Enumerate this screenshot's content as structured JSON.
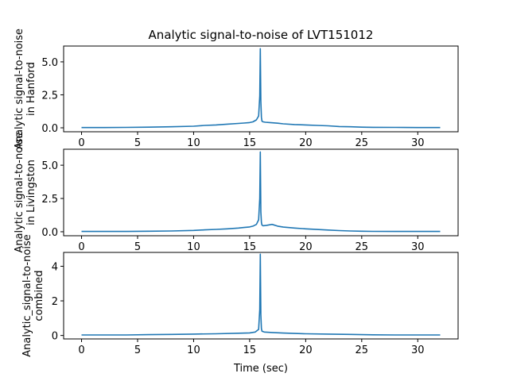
{
  "chart_data": {
    "type": "line",
    "title": "Analytic signal-to-noise of LVT151012",
    "xlabel": "Time (sec)",
    "color": "#1f77b4",
    "panels": [
      {
        "ylabel_lines": [
          "Analytic signal-to-noise",
          "in Hanford"
        ],
        "xlim": [
          -1.6,
          33.6
        ],
        "ylim": [
          -0.3,
          6.2
        ],
        "xticks": [
          0,
          5,
          10,
          15,
          20,
          25,
          30
        ],
        "yticks": [
          0.0,
          2.5,
          5.0
        ],
        "ytick_labels": [
          "0.0",
          "2.5",
          "5.0"
        ],
        "series": {
          "name": "Hanford",
          "x": [
            0,
            2,
            4,
            6,
            8,
            10,
            11,
            12,
            13,
            14,
            14.5,
            15,
            15.3,
            15.6,
            15.8,
            15.9,
            15.95,
            16.0,
            16.05,
            16.1,
            16.2,
            16.4,
            16.8,
            17.5,
            18,
            19,
            20,
            21,
            22,
            23,
            24,
            25,
            26,
            28,
            30,
            32
          ],
          "y": [
            0.02,
            0.02,
            0.03,
            0.05,
            0.08,
            0.12,
            0.18,
            0.22,
            0.28,
            0.33,
            0.36,
            0.4,
            0.45,
            0.6,
            0.9,
            2.4,
            6.0,
            2.0,
            0.8,
            0.5,
            0.45,
            0.42,
            0.4,
            0.35,
            0.3,
            0.25,
            0.22,
            0.18,
            0.15,
            0.1,
            0.08,
            0.05,
            0.04,
            0.03,
            0.02,
            0.02
          ]
        }
      },
      {
        "ylabel_lines": [
          "Analytic signal-to-noise",
          "in Livingston"
        ],
        "xlim": [
          -1.6,
          33.6
        ],
        "ylim": [
          -0.3,
          6.2
        ],
        "xticks": [
          0,
          5,
          10,
          15,
          20,
          25,
          30
        ],
        "yticks": [
          0.0,
          2.5,
          5.0
        ],
        "ytick_labels": [
          "0.0",
          "2.5",
          "5.0"
        ],
        "series": {
          "name": "Livingston",
          "x": [
            0,
            2,
            4,
            6,
            8,
            10,
            11,
            12,
            13,
            14,
            14.5,
            15,
            15.3,
            15.6,
            15.8,
            15.9,
            15.95,
            16.0,
            16.05,
            16.1,
            16.2,
            16.5,
            17,
            17.5,
            18,
            19,
            20,
            21,
            22,
            23,
            24,
            25,
            26,
            28,
            30,
            32
          ],
          "y": [
            0.02,
            0.02,
            0.02,
            0.04,
            0.06,
            0.1,
            0.14,
            0.18,
            0.22,
            0.28,
            0.32,
            0.36,
            0.42,
            0.55,
            0.9,
            2.5,
            6.0,
            1.5,
            0.7,
            0.5,
            0.45,
            0.48,
            0.55,
            0.42,
            0.35,
            0.28,
            0.22,
            0.17,
            0.13,
            0.09,
            0.06,
            0.04,
            0.03,
            0.02,
            0.02,
            0.02
          ]
        }
      },
      {
        "ylabel_lines": [
          "Analytic_signal-to-noise",
          "combined"
        ],
        "xlim": [
          -1.6,
          33.6
        ],
        "ylim": [
          -0.2,
          4.8
        ],
        "xticks": [
          0,
          5,
          10,
          15,
          20,
          25,
          30
        ],
        "yticks": [
          0,
          2,
          4
        ],
        "ytick_labels": [
          "0",
          "2",
          "4"
        ],
        "series": {
          "name": "combined",
          "x": [
            0,
            2,
            4,
            6,
            8,
            10,
            12,
            14,
            15,
            15.5,
            15.8,
            15.9,
            15.95,
            16.0,
            16.05,
            16.1,
            16.3,
            17,
            18,
            20,
            22,
            24,
            26,
            28,
            30,
            32
          ],
          "y": [
            0.03,
            0.03,
            0.03,
            0.05,
            0.06,
            0.08,
            0.1,
            0.13,
            0.15,
            0.2,
            0.35,
            1.5,
            4.7,
            1.2,
            0.4,
            0.25,
            0.2,
            0.17,
            0.14,
            0.1,
            0.08,
            0.06,
            0.04,
            0.03,
            0.03,
            0.03
          ]
        }
      }
    ]
  }
}
